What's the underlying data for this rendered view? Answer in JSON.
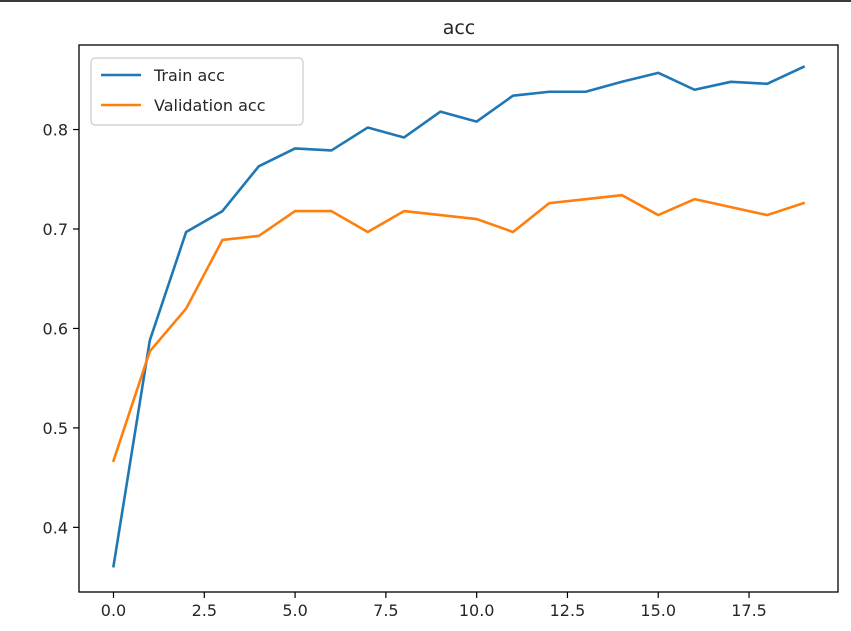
{
  "chart_data": {
    "type": "line",
    "title": "acc",
    "xlabel": "",
    "ylabel": "",
    "xlim": [
      -0.95,
      19.95
    ],
    "ylim": [
      0.335,
      0.885
    ],
    "xticks": [
      0.0,
      2.5,
      5.0,
      7.5,
      10.0,
      12.5,
      15.0,
      17.5
    ],
    "xtick_labels": [
      "0.0",
      "2.5",
      "5.0",
      "7.5",
      "10.0",
      "12.5",
      "15.0",
      "17.5"
    ],
    "yticks": [
      0.4,
      0.5,
      0.6,
      0.7,
      0.8
    ],
    "ytick_labels": [
      "0.4",
      "0.5",
      "0.6",
      "0.7",
      "0.8"
    ],
    "grid": false,
    "legend_position": "top-left",
    "x": [
      0,
      1,
      2,
      3,
      4,
      5,
      6,
      7,
      8,
      9,
      10,
      11,
      12,
      13,
      14,
      15,
      16,
      17,
      18,
      19
    ],
    "series": [
      {
        "name": "Train acc",
        "color": "#1f77b4",
        "values": [
          0.361,
          0.588,
          0.697,
          0.718,
          0.763,
          0.781,
          0.779,
          0.802,
          0.792,
          0.818,
          0.808,
          0.834,
          0.838,
          0.838,
          0.848,
          0.857,
          0.84,
          0.848,
          0.846,
          0.863
        ]
      },
      {
        "name": "Validation acc",
        "color": "#ff7f0e",
        "values": [
          0.467,
          0.577,
          0.62,
          0.689,
          0.693,
          0.718,
          0.718,
          0.697,
          0.718,
          0.714,
          0.71,
          0.697,
          0.726,
          0.73,
          0.734,
          0.714,
          0.73,
          0.722,
          0.714,
          0.726
        ]
      }
    ]
  }
}
